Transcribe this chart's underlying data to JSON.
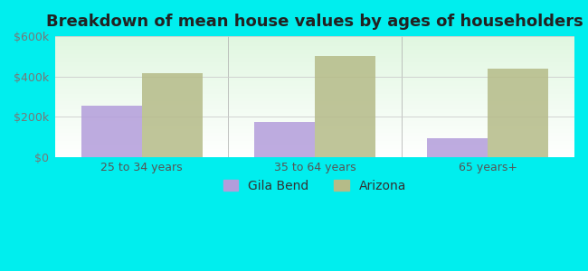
{
  "title": "Breakdown of mean house values by ages of householders",
  "categories": [
    "25 to 34 years",
    "35 to 64 years",
    "65 years+"
  ],
  "gila_bend_values": [
    255000,
    175000,
    95000
  ],
  "arizona_values": [
    415000,
    500000,
    440000
  ],
  "gila_bend_color": "#b39ddb",
  "arizona_color": "#b5bb88",
  "ylim": [
    0,
    600000
  ],
  "yticks": [
    0,
    200000,
    400000,
    600000
  ],
  "ytick_labels": [
    "$0",
    "$200k",
    "$400k",
    "$600k"
  ],
  "background_color": "#00eeee",
  "legend_labels": [
    "Gila Bend",
    "Arizona"
  ],
  "bar_width": 0.35,
  "title_fontsize": 13,
  "tick_fontsize": 9,
  "legend_fontsize": 10
}
